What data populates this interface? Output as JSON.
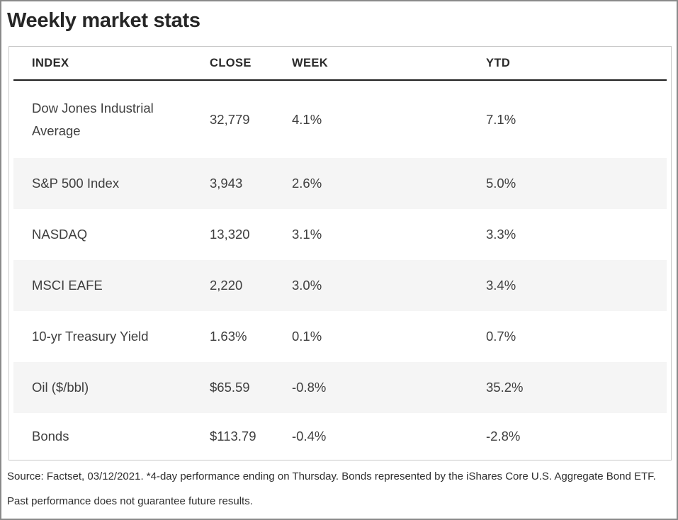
{
  "title": "Weekly market stats",
  "table": {
    "columns": {
      "index": "INDEX",
      "close": "CLOSE",
      "week": "WEEK",
      "ytd": "YTD"
    },
    "rows": [
      {
        "index": "Dow Jones Industrial Average",
        "close": "32,779",
        "week": "4.1%",
        "ytd": "7.1%"
      },
      {
        "index": "S&P 500 Index",
        "close": "3,943",
        "week": "2.6%",
        "ytd": "5.0%"
      },
      {
        "index": "NASDAQ",
        "close": "13,320",
        "week": "3.1%",
        "ytd": "3.3%"
      },
      {
        "index": "MSCI EAFE",
        "close": "2,220",
        "week": "3.0%",
        "ytd": "3.4%"
      },
      {
        "index": "10-yr Treasury Yield",
        "close": "1.63%",
        "week": "0.1%",
        "ytd": "0.7%"
      },
      {
        "index": "Oil ($/bbl)",
        "close": "$65.59",
        "week": "-0.8%",
        "ytd": "35.2%"
      },
      {
        "index": "Bonds",
        "close": "$113.79",
        "week": "-0.4%",
        "ytd": "-2.8%"
      }
    ]
  },
  "footnote": {
    "line1": "Source: Factset, 03/12/2021. *4-day performance ending on Thursday. Bonds represented by the iShares Core U.S. Aggregate Bond ETF.",
    "line2": "Past performance does not guarantee future results."
  },
  "colors": {
    "stripe": "#f5f5f5",
    "header_rule": "#1e1e1e",
    "card_border": "#c8c8c8",
    "frame_border": "#8a8a8a",
    "body_text": "#3f3f3f",
    "title_text": "#262626"
  },
  "chart_data": {
    "type": "table",
    "title": "Weekly market stats",
    "columns": [
      "INDEX",
      "CLOSE",
      "WEEK",
      "YTD"
    ],
    "rows": [
      [
        "Dow Jones Industrial Average",
        "32,779",
        "4.1%",
        "7.1%"
      ],
      [
        "S&P 500 Index",
        "3,943",
        "2.6%",
        "5.0%"
      ],
      [
        "NASDAQ",
        "13,320",
        "3.1%",
        "3.3%"
      ],
      [
        "MSCI EAFE",
        "2,220",
        "3.0%",
        "3.4%"
      ],
      [
        "10-yr Treasury Yield",
        "1.63%",
        "0.1%",
        "0.7%"
      ],
      [
        "Oil ($/bbl)",
        "$65.59",
        "-0.8%",
        "35.2%"
      ],
      [
        "Bonds",
        "$113.79",
        "-0.4%",
        "-2.8%"
      ]
    ],
    "layout_hints": {
      "zebra_striping": true,
      "striped_rows": [
        1,
        3,
        5
      ],
      "header_rule": true
    }
  }
}
